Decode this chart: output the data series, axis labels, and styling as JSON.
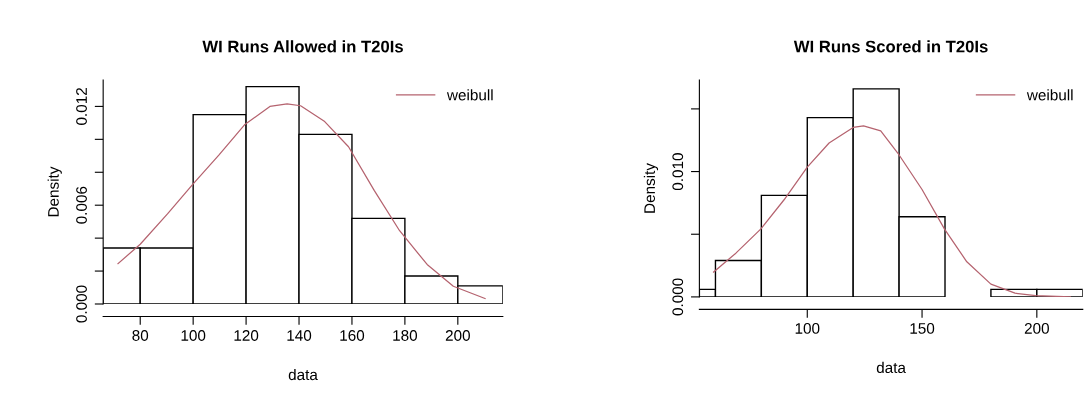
{
  "chart_data": [
    {
      "type": "histogram",
      "title": "WI Runs Allowed in T20Is",
      "xlabel": "data",
      "ylabel": "Density",
      "bins": [
        66,
        80,
        100,
        120,
        140,
        160,
        180,
        200,
        217
      ],
      "values": [
        0.0034,
        0.0034,
        0.0115,
        0.0132,
        0.0103,
        0.0052,
        0.0017,
        0.0011
      ],
      "color": "#ffffff",
      "series": [
        {
          "type": "line",
          "name": "weibull",
          "color": "#b5636f",
          "x": [
            71.6,
            80,
            90.3,
            100,
            109.7,
            119.4,
            129,
            135.5,
            140.6,
            149.7,
            158.7,
            168.4,
            178,
            188.4,
            198.3,
            210.3
          ],
          "values": [
            0.00245,
            0.00363,
            0.00547,
            0.0073,
            0.00904,
            0.01088,
            0.012,
            0.01216,
            0.01204,
            0.01108,
            0.00955,
            0.0069,
            0.00445,
            0.0024,
            0.00108,
            0.00033
          ]
        }
      ],
      "xlim": [
        66,
        217
      ],
      "ylim": [
        0,
        0.0136
      ],
      "xticks": [
        80,
        100,
        120,
        140,
        160,
        180,
        200
      ],
      "yticks": [
        {
          "value": 0,
          "label": "0.000"
        },
        {
          "value": 0.002,
          "label": null
        },
        {
          "value": 0.004,
          "label": null
        },
        {
          "value": 0.006,
          "label": "0.006"
        },
        {
          "value": 0.008,
          "label": null
        },
        {
          "value": 0.01,
          "label": null
        },
        {
          "value": 0.012,
          "label": "0.012"
        }
      ],
      "legend": "top right",
      "grid": false
    },
    {
      "type": "histogram",
      "title": "WI Runs Scored in T20Is",
      "xlabel": "data",
      "ylabel": "Density",
      "bins": [
        53,
        60,
        80,
        100,
        120,
        140,
        160,
        180,
        200,
        220
      ],
      "values": [
        0.0006,
        0.0029,
        0.0081,
        0.0143,
        0.0166,
        0.0064,
        0,
        0.0006,
        0.0006
      ],
      "color": "#ffffff",
      "series": [
        {
          "type": "line",
          "name": "weibull",
          "color": "#b5636f",
          "x": [
            59.2,
            68.9,
            79.7,
            89.9,
            100,
            109.5,
            120,
            124.5,
            132,
            139.5,
            150,
            159.8,
            169.5,
            180,
            190.5,
            199.5,
            214.6
          ],
          "values": [
            0.00198,
            0.00349,
            0.00541,
            0.00775,
            0.01036,
            0.01228,
            0.01352,
            0.01365,
            0.01324,
            0.01146,
            0.00857,
            0.00541,
            0.0028,
            0.00102,
            0.0003,
            0.0001,
            0
          ]
        }
      ],
      "xlim": [
        53,
        220
      ],
      "ylim": [
        0,
        0.0173
      ],
      "xticks": [
        100,
        150,
        200
      ],
      "yticks": [
        {
          "value": 0,
          "label": "0.000"
        },
        {
          "value": 0.005,
          "label": null
        },
        {
          "value": 0.01,
          "label": "0.010"
        },
        {
          "value": 0.015,
          "label": null
        }
      ],
      "legend": "top right",
      "grid": false
    }
  ]
}
